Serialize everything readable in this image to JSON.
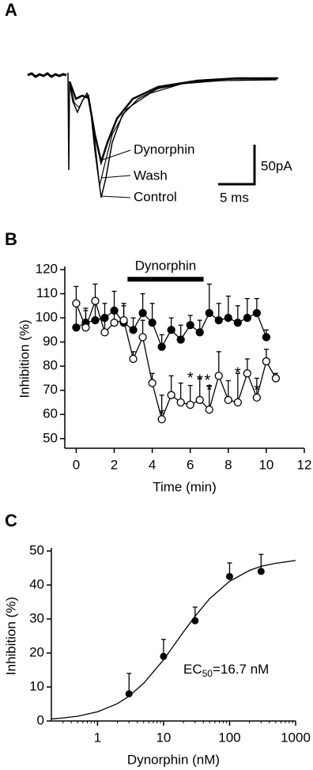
{
  "chart_data": [
    {
      "type": "trace",
      "panel": "A",
      "labels": [
        "Dynorphin",
        "Wash",
        "Control"
      ],
      "scale_bar": {
        "y_label": "50pA",
        "x_label": "5 ms"
      }
    },
    {
      "type": "line",
      "panel": "B",
      "xlabel": "Time (min)",
      "ylabel": "Inhibition (%)",
      "xlim": [
        -0.6,
        12
      ],
      "ylim": [
        46,
        120
      ],
      "xticks": [
        0,
        2,
        4,
        6,
        8,
        10,
        12
      ],
      "yticks": [
        50,
        60,
        70,
        80,
        90,
        100,
        110,
        120
      ],
      "series": [
        {
          "color": "#000000",
          "fill": "#000000",
          "x": [
            0,
            0.5,
            1,
            1.5,
            2,
            2.5,
            3,
            3.5,
            4,
            4.5,
            5,
            5.5,
            6,
            6.5,
            7,
            7.5,
            8,
            8.5,
            9,
            9.5,
            10
          ],
          "values": [
            96,
            98,
            99,
            100,
            103,
            98,
            95,
            102,
            98,
            88,
            95,
            91,
            97,
            94,
            102,
            99,
            100,
            98,
            100,
            102,
            92
          ],
          "errors": [
            9,
            6,
            9,
            6,
            8,
            8,
            5,
            8,
            8,
            5,
            5,
            6,
            4,
            5,
            12,
            7,
            9,
            7,
            8,
            6,
            3
          ]
        },
        {
          "color": "#000000",
          "fill": "#ffffff",
          "x": [
            0,
            0.5,
            1,
            1.5,
            2,
            2.5,
            3,
            3.5,
            4,
            4.5,
            5,
            5.5,
            6,
            6.5,
            7,
            7.5,
            8,
            8.5,
            9,
            9.5,
            10,
            10.5
          ],
          "values": [
            106,
            96,
            107,
            94,
            98,
            99,
            83,
            92,
            73,
            58,
            68,
            65,
            64,
            66,
            62,
            76,
            66,
            65,
            77,
            67,
            82,
            75
          ],
          "errors": [
            7,
            7,
            7,
            5,
            6,
            6,
            3,
            7,
            4,
            10,
            8,
            8,
            8,
            9,
            10,
            10,
            8,
            12,
            6,
            8,
            5,
            2
          ]
        }
      ],
      "bar_annotation": {
        "label": "Dynorphin",
        "x": [
          2.7,
          6.7
        ],
        "y": 116
      },
      "annotations": [
        {
          "text": "*",
          "x": 4.5,
          "y": 61
        },
        {
          "text": "*",
          "x": 6,
          "y": 76
        },
        {
          "text": "*",
          "x": 6.5,
          "y": 75
        },
        {
          "text": "*",
          "x": 6.9,
          "y": 75
        },
        {
          "text": "*",
          "x": 7,
          "y": 71
        },
        {
          "text": "*",
          "x": 8.5,
          "y": 78
        },
        {
          "text": "*",
          "x": 9.5,
          "y": 71
        }
      ]
    },
    {
      "type": "scatter",
      "panel": "C",
      "xlabel": "Dynorphin (nM)",
      "ylabel": "Inhibition (%)",
      "log_x": true,
      "xlim": [
        0.2,
        1000
      ],
      "ylim": [
        0,
        50
      ],
      "xticks": [
        1,
        10,
        100,
        1000
      ],
      "yticks": [
        0,
        10,
        20,
        30,
        40,
        50
      ],
      "color": "#000000",
      "x": [
        3,
        10,
        30,
        100,
        300
      ],
      "values": [
        8,
        19,
        29.5,
        42.5,
        44
      ],
      "errors": [
        6,
        5,
        4,
        4,
        5
      ],
      "fit": {
        "x": [
          0.2,
          0.3,
          0.5,
          1,
          2,
          3,
          5,
          10,
          20,
          30,
          50,
          100,
          200,
          300,
          500,
          1000
        ],
        "values": [
          0.6,
          0.9,
          1.4,
          2.7,
          5.1,
          7.3,
          11.1,
          18,
          26.2,
          30.8,
          36,
          41.1,
          44.3,
          45.5,
          46.4,
          47.2
        ]
      },
      "annotation": {
        "base": "EC",
        "sub": "50",
        "rest": "=16.7 nM"
      }
    }
  ]
}
